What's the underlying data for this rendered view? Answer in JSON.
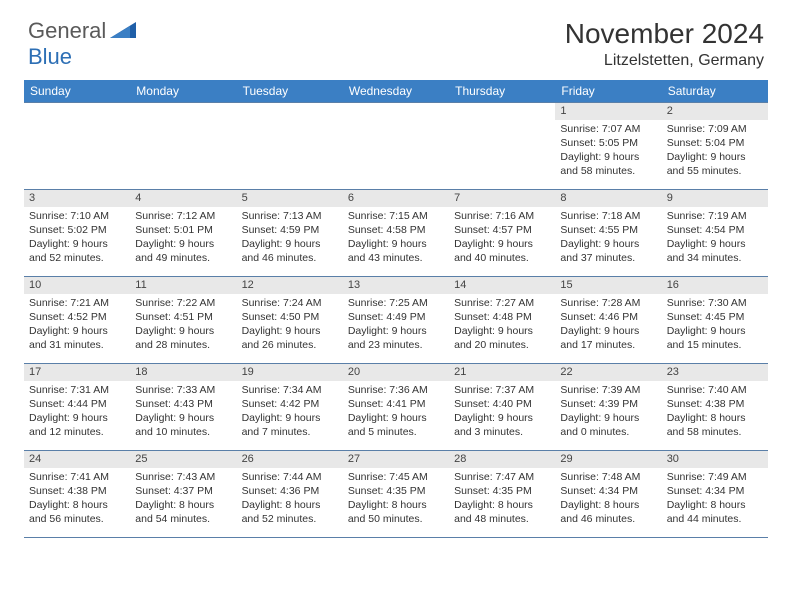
{
  "brand": {
    "part1": "General",
    "part2": "Blue"
  },
  "title": "November 2024",
  "location": "Litzelstetten, Germany",
  "colors": {
    "header_bg": "#3b7fc4",
    "header_text": "#ffffff",
    "sub_bg": "#e8e8e8",
    "rule": "#5a7fa8",
    "body_text": "#333333",
    "brand_gray": "#5a5a5a",
    "brand_blue": "#2d6fb5"
  },
  "dayNames": [
    "Sunday",
    "Monday",
    "Tuesday",
    "Wednesday",
    "Thursday",
    "Friday",
    "Saturday"
  ],
  "weeks": [
    [
      {
        "day": "",
        "lines": []
      },
      {
        "day": "",
        "lines": []
      },
      {
        "day": "",
        "lines": []
      },
      {
        "day": "",
        "lines": []
      },
      {
        "day": "",
        "lines": []
      },
      {
        "day": "1",
        "lines": [
          "Sunrise: 7:07 AM",
          "Sunset: 5:05 PM",
          "Daylight: 9 hours and 58 minutes."
        ]
      },
      {
        "day": "2",
        "lines": [
          "Sunrise: 7:09 AM",
          "Sunset: 5:04 PM",
          "Daylight: 9 hours and 55 minutes."
        ]
      }
    ],
    [
      {
        "day": "3",
        "lines": [
          "Sunrise: 7:10 AM",
          "Sunset: 5:02 PM",
          "Daylight: 9 hours and 52 minutes."
        ]
      },
      {
        "day": "4",
        "lines": [
          "Sunrise: 7:12 AM",
          "Sunset: 5:01 PM",
          "Daylight: 9 hours and 49 minutes."
        ]
      },
      {
        "day": "5",
        "lines": [
          "Sunrise: 7:13 AM",
          "Sunset: 4:59 PM",
          "Daylight: 9 hours and 46 minutes."
        ]
      },
      {
        "day": "6",
        "lines": [
          "Sunrise: 7:15 AM",
          "Sunset: 4:58 PM",
          "Daylight: 9 hours and 43 minutes."
        ]
      },
      {
        "day": "7",
        "lines": [
          "Sunrise: 7:16 AM",
          "Sunset: 4:57 PM",
          "Daylight: 9 hours and 40 minutes."
        ]
      },
      {
        "day": "8",
        "lines": [
          "Sunrise: 7:18 AM",
          "Sunset: 4:55 PM",
          "Daylight: 9 hours and 37 minutes."
        ]
      },
      {
        "day": "9",
        "lines": [
          "Sunrise: 7:19 AM",
          "Sunset: 4:54 PM",
          "Daylight: 9 hours and 34 minutes."
        ]
      }
    ],
    [
      {
        "day": "10",
        "lines": [
          "Sunrise: 7:21 AM",
          "Sunset: 4:52 PM",
          "Daylight: 9 hours and 31 minutes."
        ]
      },
      {
        "day": "11",
        "lines": [
          "Sunrise: 7:22 AM",
          "Sunset: 4:51 PM",
          "Daylight: 9 hours and 28 minutes."
        ]
      },
      {
        "day": "12",
        "lines": [
          "Sunrise: 7:24 AM",
          "Sunset: 4:50 PM",
          "Daylight: 9 hours and 26 minutes."
        ]
      },
      {
        "day": "13",
        "lines": [
          "Sunrise: 7:25 AM",
          "Sunset: 4:49 PM",
          "Daylight: 9 hours and 23 minutes."
        ]
      },
      {
        "day": "14",
        "lines": [
          "Sunrise: 7:27 AM",
          "Sunset: 4:48 PM",
          "Daylight: 9 hours and 20 minutes."
        ]
      },
      {
        "day": "15",
        "lines": [
          "Sunrise: 7:28 AM",
          "Sunset: 4:46 PM",
          "Daylight: 9 hours and 17 minutes."
        ]
      },
      {
        "day": "16",
        "lines": [
          "Sunrise: 7:30 AM",
          "Sunset: 4:45 PM",
          "Daylight: 9 hours and 15 minutes."
        ]
      }
    ],
    [
      {
        "day": "17",
        "lines": [
          "Sunrise: 7:31 AM",
          "Sunset: 4:44 PM",
          "Daylight: 9 hours and 12 minutes."
        ]
      },
      {
        "day": "18",
        "lines": [
          "Sunrise: 7:33 AM",
          "Sunset: 4:43 PM",
          "Daylight: 9 hours and 10 minutes."
        ]
      },
      {
        "day": "19",
        "lines": [
          "Sunrise: 7:34 AM",
          "Sunset: 4:42 PM",
          "Daylight: 9 hours and 7 minutes."
        ]
      },
      {
        "day": "20",
        "lines": [
          "Sunrise: 7:36 AM",
          "Sunset: 4:41 PM",
          "Daylight: 9 hours and 5 minutes."
        ]
      },
      {
        "day": "21",
        "lines": [
          "Sunrise: 7:37 AM",
          "Sunset: 4:40 PM",
          "Daylight: 9 hours and 3 minutes."
        ]
      },
      {
        "day": "22",
        "lines": [
          "Sunrise: 7:39 AM",
          "Sunset: 4:39 PM",
          "Daylight: 9 hours and 0 minutes."
        ]
      },
      {
        "day": "23",
        "lines": [
          "Sunrise: 7:40 AM",
          "Sunset: 4:38 PM",
          "Daylight: 8 hours and 58 minutes."
        ]
      }
    ],
    [
      {
        "day": "24",
        "lines": [
          "Sunrise: 7:41 AM",
          "Sunset: 4:38 PM",
          "Daylight: 8 hours and 56 minutes."
        ]
      },
      {
        "day": "25",
        "lines": [
          "Sunrise: 7:43 AM",
          "Sunset: 4:37 PM",
          "Daylight: 8 hours and 54 minutes."
        ]
      },
      {
        "day": "26",
        "lines": [
          "Sunrise: 7:44 AM",
          "Sunset: 4:36 PM",
          "Daylight: 8 hours and 52 minutes."
        ]
      },
      {
        "day": "27",
        "lines": [
          "Sunrise: 7:45 AM",
          "Sunset: 4:35 PM",
          "Daylight: 8 hours and 50 minutes."
        ]
      },
      {
        "day": "28",
        "lines": [
          "Sunrise: 7:47 AM",
          "Sunset: 4:35 PM",
          "Daylight: 8 hours and 48 minutes."
        ]
      },
      {
        "day": "29",
        "lines": [
          "Sunrise: 7:48 AM",
          "Sunset: 4:34 PM",
          "Daylight: 8 hours and 46 minutes."
        ]
      },
      {
        "day": "30",
        "lines": [
          "Sunrise: 7:49 AM",
          "Sunset: 4:34 PM",
          "Daylight: 8 hours and 44 minutes."
        ]
      }
    ]
  ]
}
